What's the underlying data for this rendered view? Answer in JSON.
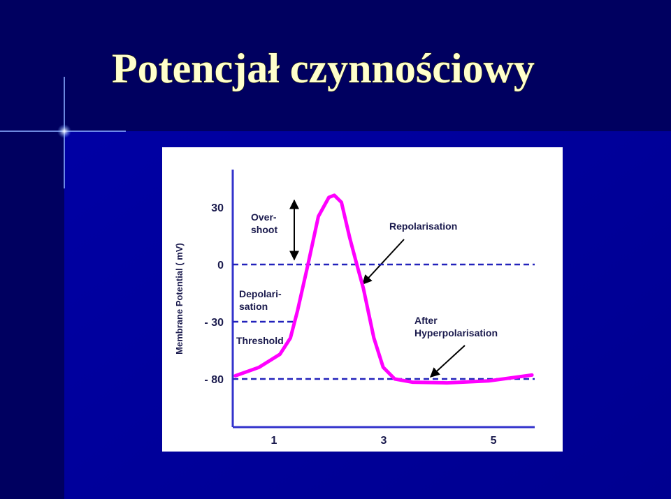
{
  "slide": {
    "title": "Potencjał czynnościowy"
  },
  "chart_data": {
    "type": "line",
    "y_label": "Membrane Potential ( mV)",
    "x": [
      0.3,
      0.73,
      1.11,
      1.3,
      1.43,
      1.62,
      1.81,
      2.0,
      2.1,
      2.23,
      2.38,
      2.51,
      2.63,
      2.82,
      2.99,
      3.2,
      3.52,
      4.15,
      4.91,
      5.7
    ],
    "values": [
      -77.2,
      -69.8,
      -58.4,
      -44.2,
      -24.2,
      0,
      25.2,
      35.2,
      36.3,
      32.6,
      14.1,
      0,
      -12.5,
      -44.2,
      -69.8,
      -80,
      -82.8,
      -83.4,
      -81.7,
      -76.6
    ],
    "color": "#ff00ff",
    "xlim": [
      0.25,
      5.75
    ],
    "xticks": [
      1,
      3,
      5
    ],
    "yticks": [
      30,
      0,
      {
        "value": -30,
        "label": "- 30"
      },
      {
        "value": -80,
        "label": "- 80"
      }
    ],
    "hlines": [
      0,
      -30,
      -80
    ],
    "annotations": {
      "overshoot": [
        "Over-",
        "shoot"
      ],
      "repolarisation": [
        "Repolarisation"
      ],
      "depolarisation": [
        "Depolari-",
        "sation"
      ],
      "threshold": [
        "Threshold"
      ],
      "after_hyperpolarisation": [
        "After",
        "Hyperpolarisation"
      ]
    }
  }
}
